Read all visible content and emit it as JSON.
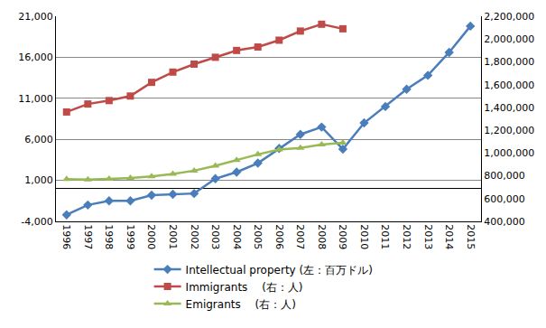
{
  "chart_data": {
    "type": "line",
    "categories": [
      "1996",
      "1997",
      "1998",
      "1999",
      "2000",
      "2001",
      "2002",
      "2003",
      "2004",
      "2005",
      "2006",
      "2007",
      "2008",
      "2009",
      "2010",
      "2011",
      "2012",
      "2013",
      "2014",
      "2015"
    ],
    "series": [
      {
        "name": "Intellectual property (左：百万ドル)",
        "color": "#4a7ebb",
        "marker": "diamond",
        "axis": "y",
        "values": [
          -3200,
          -2000,
          -1500,
          -1500,
          -800,
          -700,
          -600,
          1200,
          2000,
          3100,
          4900,
          6600,
          7500,
          4800,
          8000,
          10000,
          12100,
          13800,
          16600,
          19800
        ]
      },
      {
        "name": "Immigrants　 (右：人)",
        "color": "#be4b48",
        "marker": "square",
        "axis": "y2",
        "values": [
          1360000,
          1430000,
          1460000,
          1500000,
          1620000,
          1710000,
          1780000,
          1840000,
          1900000,
          1930000,
          1990000,
          2070000,
          2130000,
          2090000,
          null,
          null,
          null,
          null,
          null,
          null
        ]
      },
      {
        "name": "Emigrants　 (右：人)",
        "color": "#98b954",
        "marker": "triangle-up",
        "axis": "y2",
        "values": [
          770000,
          766000,
          773000,
          780000,
          795000,
          816000,
          845000,
          888000,
          938000,
          988000,
          1030000,
          1045000,
          1074000,
          1090000,
          null,
          null,
          null,
          null,
          null,
          null
        ]
      }
    ],
    "ylim": [
      -4000,
      21000
    ],
    "yticks": [
      {
        "value": -4000,
        "label": "-4,000"
      },
      {
        "value": 1000,
        "label": "1,000"
      },
      {
        "value": 6000,
        "label": "6,000"
      },
      {
        "value": 11000,
        "label": "11,000"
      },
      {
        "value": 16000,
        "label": "16,000"
      },
      {
        "value": 21000,
        "label": "21,000"
      }
    ],
    "y2lim": [
      400000,
      2200000
    ],
    "y2ticks": [
      {
        "value": 400000,
        "label": "400,000"
      },
      {
        "value": 600000,
        "label": "600,000"
      },
      {
        "value": 800000,
        "label": "800,000"
      },
      {
        "value": 1000000,
        "label": "1,000,000"
      },
      {
        "value": 1200000,
        "label": "1,200,000"
      },
      {
        "value": 1400000,
        "label": "1,400,000"
      },
      {
        "value": 1600000,
        "label": "1,600,000"
      },
      {
        "value": 1800000,
        "label": "1,800,000"
      },
      {
        "value": 2000000,
        "label": "2,000,000"
      },
      {
        "value": 2200000,
        "label": "2,200,000"
      }
    ],
    "grid": true,
    "legend": "bottom"
  }
}
